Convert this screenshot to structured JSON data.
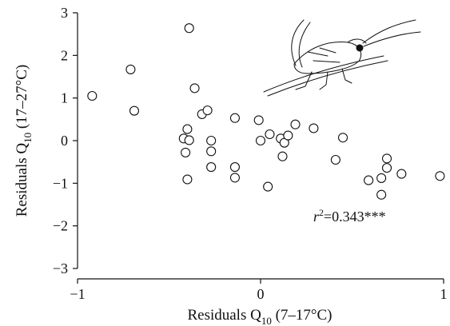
{
  "chart_data": {
    "type": "scatter",
    "xlabel": {
      "main": "Residuals Q",
      "sub": "10",
      "rest": " (7–17°C)"
    },
    "ylabel": {
      "main": "Residuals Q",
      "sub": "10",
      "rest": " (17–27°C)"
    },
    "xlim": [
      -1,
      1
    ],
    "ylim": [
      -3,
      3
    ],
    "x_ticks": [
      -1,
      0,
      1
    ],
    "y_ticks": [
      -3,
      -2,
      -1,
      0,
      1,
      2,
      3
    ],
    "x_tick_labels": [
      "−1",
      "0",
      "1"
    ],
    "y_tick_labels": [
      "−3",
      "−2",
      "−1",
      "0",
      "1",
      "2",
      "3"
    ],
    "annotation": {
      "r": "r",
      "sup": "2",
      "rest": "=0.343***"
    },
    "points": [
      {
        "x": -0.92,
        "y": 1.05
      },
      {
        "x": -0.71,
        "y": 1.67
      },
      {
        "x": -0.69,
        "y": 0.7
      },
      {
        "x": -0.39,
        "y": 2.64
      },
      {
        "x": -0.36,
        "y": 1.23
      },
      {
        "x": -0.32,
        "y": 0.62
      },
      {
        "x": -0.29,
        "y": 0.71
      },
      {
        "x": -0.4,
        "y": 0.27
      },
      {
        "x": -0.42,
        "y": 0.05
      },
      {
        "x": -0.41,
        "y": -0.28
      },
      {
        "x": -0.39,
        "y": 0.01
      },
      {
        "x": -0.27,
        "y": 0.0
      },
      {
        "x": -0.27,
        "y": -0.25
      },
      {
        "x": -0.27,
        "y": -0.62
      },
      {
        "x": -0.4,
        "y": -0.91
      },
      {
        "x": -0.14,
        "y": 0.53
      },
      {
        "x": -0.14,
        "y": -0.62
      },
      {
        "x": -0.14,
        "y": -0.87
      },
      {
        "x": -0.01,
        "y": 0.48
      },
      {
        "x": 0.0,
        "y": 0.0
      },
      {
        "x": 0.05,
        "y": 0.15
      },
      {
        "x": 0.04,
        "y": -1.08
      },
      {
        "x": 0.11,
        "y": 0.05
      },
      {
        "x": 0.13,
        "y": -0.05
      },
      {
        "x": 0.15,
        "y": 0.12
      },
      {
        "x": 0.12,
        "y": -0.37
      },
      {
        "x": 0.19,
        "y": 0.38
      },
      {
        "x": 0.29,
        "y": 0.29
      },
      {
        "x": 0.41,
        "y": -0.45
      },
      {
        "x": 0.45,
        "y": 0.07
      },
      {
        "x": 0.59,
        "y": -0.93
      },
      {
        "x": 0.66,
        "y": -1.27
      },
      {
        "x": 0.66,
        "y": -0.88
      },
      {
        "x": 0.69,
        "y": -0.42
      },
      {
        "x": 0.69,
        "y": -0.64
      },
      {
        "x": 0.77,
        "y": -0.78
      },
      {
        "x": 0.98,
        "y": -0.83
      }
    ]
  }
}
